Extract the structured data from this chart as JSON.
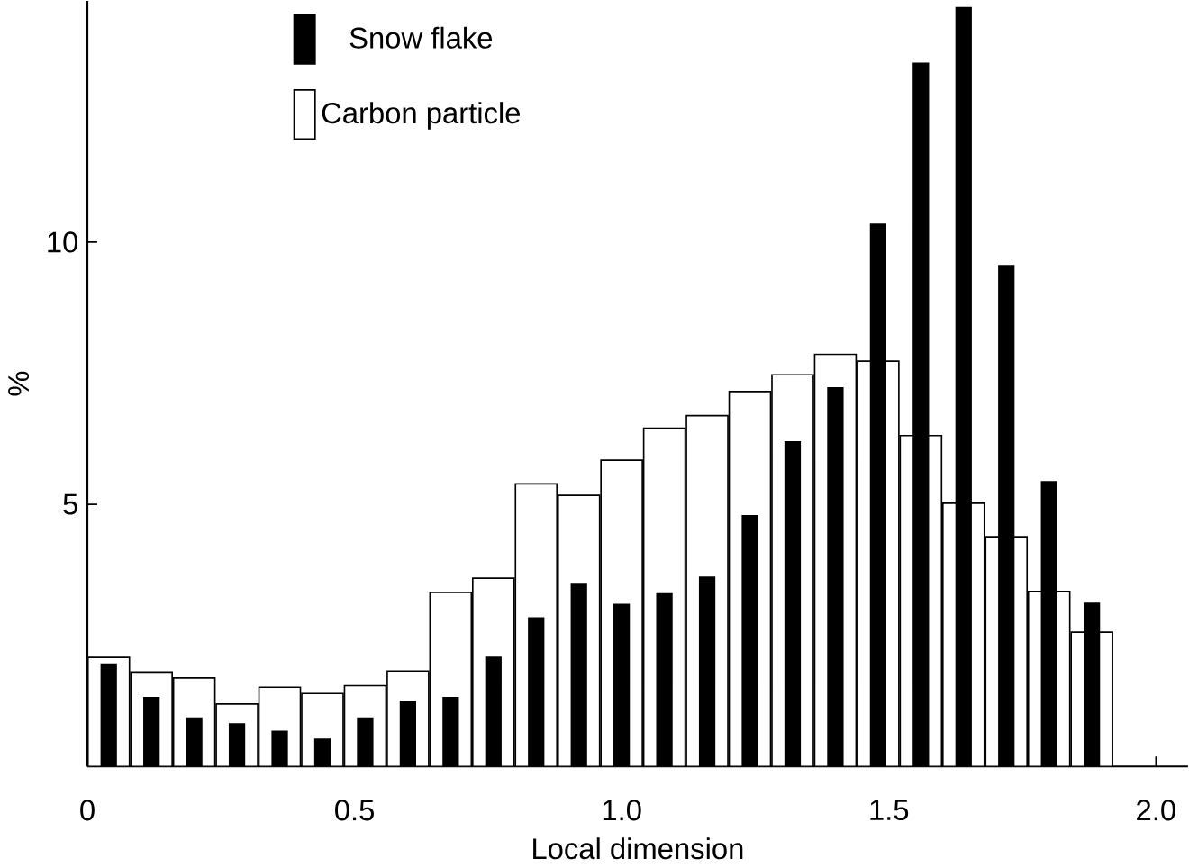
{
  "chart_data": {
    "type": "bar",
    "xlabel": "Local dimension",
    "ylabel": "%",
    "x": [
      0.04,
      0.12,
      0.2,
      0.28,
      0.36,
      0.44,
      0.52,
      0.6,
      0.68,
      0.76,
      0.84,
      0.92,
      1.0,
      1.08,
      1.16,
      1.24,
      1.32,
      1.4,
      1.48,
      1.56,
      1.64,
      1.72,
      1.8,
      1.88
    ],
    "series": [
      {
        "name": "Carbon particle",
        "color": "#ffffff",
        "values": [
          2.08,
          1.8,
          1.69,
          1.19,
          1.51,
          1.39,
          1.54,
          1.82,
          3.32,
          3.59,
          5.39,
          5.17,
          5.84,
          6.45,
          6.69,
          7.15,
          7.47,
          7.86,
          7.73,
          6.31,
          5.02,
          4.38,
          3.34,
          2.56
        ]
      },
      {
        "name": "Snow flake",
        "color": "#000000",
        "values": [
          1.95,
          1.31,
          0.92,
          0.81,
          0.67,
          0.52,
          0.92,
          1.24,
          1.31,
          2.08,
          2.83,
          3.47,
          3.09,
          3.29,
          3.61,
          4.78,
          6.19,
          7.22,
          10.34,
          13.41,
          14.47,
          9.55,
          5.43,
          3.11
        ]
      }
    ],
    "xlim": [
      0,
      2.06
    ],
    "ylim": [
      0,
      14.6
    ],
    "xticks": [
      0,
      0.5,
      {
        "value": 1.0,
        "label": "1.0"
      },
      1.5,
      {
        "value": 2.0,
        "label": "2.0"
      }
    ],
    "yticks": [
      5,
      10
    ],
    "tick_labels": true,
    "legend": "top left",
    "grid": false
  }
}
